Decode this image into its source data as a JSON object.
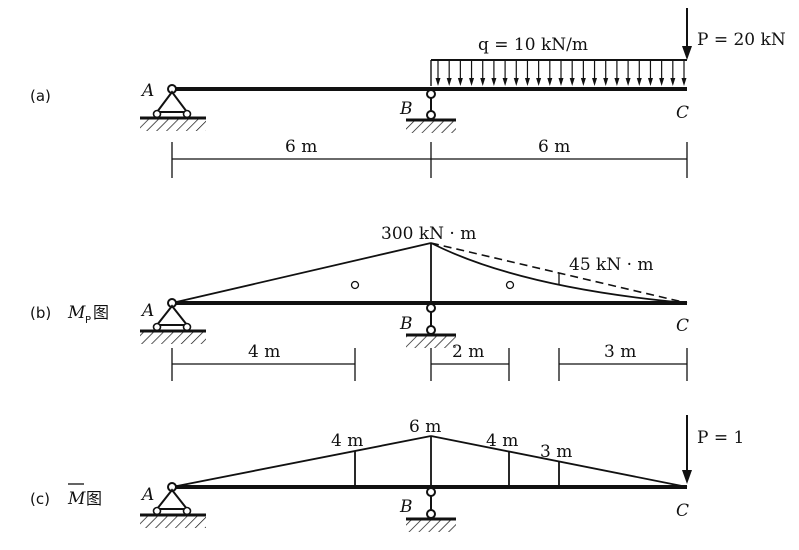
{
  "panel_a": {
    "tag": "(a)",
    "load_q": "q = 10 kN/m",
    "load_P": "P = 20 kN",
    "node_A": "A",
    "node_B": "B",
    "node_C": "C",
    "dim_AB": "6 m",
    "dim_BC": "6 m"
  },
  "panel_b": {
    "tag": "(b)",
    "diagram_name": "M",
    "diagram_sub": "P",
    "diagram_suffix": "图",
    "moment_B": "300 kN · m",
    "moment_mid": "45 kN · m",
    "node_A": "A",
    "node_B": "B",
    "node_C": "C",
    "dim_1": "4 m",
    "dim_2": "2 m",
    "dim_3": "3 m"
  },
  "panel_c": {
    "tag": "(c)",
    "diagram_name": "M",
    "diagram_suffix": "图",
    "ord_1": "4 m",
    "ord_2": "6 m",
    "ord_3": "4 m",
    "ord_4": "3 m",
    "load_P": "P = 1",
    "node_A": "A",
    "node_B": "B",
    "node_C": "C"
  }
}
